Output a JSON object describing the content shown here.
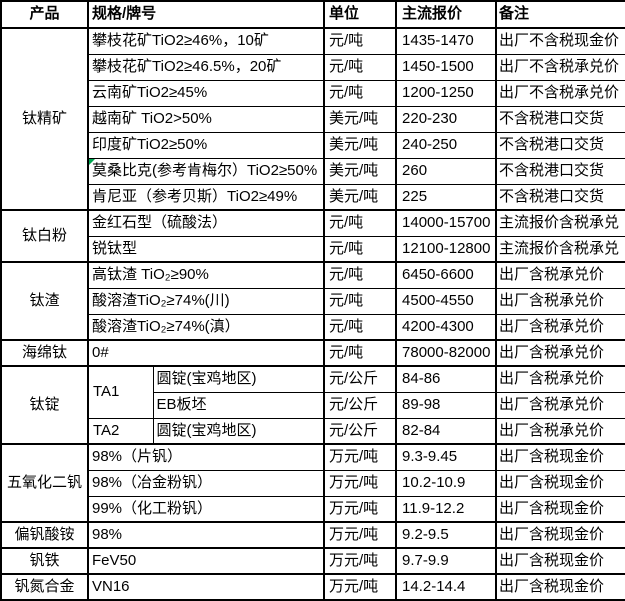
{
  "colors": {
    "grid": "#000000",
    "background": "#ffffff",
    "text": "#000000",
    "flag_green": "#00a650"
  },
  "table": {
    "headers": [
      "产品",
      "规格/牌号",
      "单位",
      "主流报价",
      "备注"
    ],
    "groups": [
      {
        "product": "钛精矿",
        "rows": [
          {
            "spec": "攀枝花矿TiO2≥46%，10矿",
            "unit": "元/吨",
            "price": "1435-1470",
            "note": "出厂不含税现金价"
          },
          {
            "spec": "攀枝花矿TiO2≥46.5%，20矿",
            "unit": "元/吨",
            "price": "1450-1500",
            "note": "出厂不含税承兑价"
          },
          {
            "spec": "云南矿TiO2≥45%",
            "unit": "元/吨",
            "price": "1200-1250",
            "note": "出厂不含税承兑价"
          },
          {
            "spec": "越南矿 TiO2>50%",
            "unit": "美元/吨",
            "price": "220-230",
            "note": "不含税港口交货"
          },
          {
            "spec": "印度矿TiO2≥50%",
            "unit": "美元/吨",
            "price": "240-250",
            "note": "不含税港口交货"
          },
          {
            "spec": "莫桑比克(参考肯梅尔）TiO2≥50%",
            "unit": "美元/吨",
            "price": "260",
            "note": "不含税港口交货",
            "marker": true
          },
          {
            "spec": "肯尼亚（参考贝斯）TiO2≥49%",
            "unit": "美元/吨",
            "price": "225",
            "note": "不含税港口交货"
          }
        ]
      },
      {
        "product": "钛白粉",
        "rows": [
          {
            "spec": "金红石型（硫酸法）",
            "unit": "元/吨",
            "price": "14000-15700",
            "note": "主流报价含税承兑"
          },
          {
            "spec": "锐钛型",
            "unit": "元/吨",
            "price": "12100-12800",
            "note": "主流报价含税承兑"
          }
        ]
      },
      {
        "product": "钛渣",
        "rows": [
          {
            "spec": "高钛渣 TiO₂≥90%",
            "unit": "元/吨",
            "price": "6450-6600",
            "note": "出厂含税承兑价"
          },
          {
            "spec": "酸溶渣TiO₂≥74%(川)",
            "unit": "元/吨",
            "price": "4500-4550",
            "note": "出厂含税承兑价"
          },
          {
            "spec": "酸溶渣TiO₂≥74%(滇）",
            "unit": "元/吨",
            "price": "4200-4300",
            "note": "出厂含税承兑价"
          }
        ]
      },
      {
        "product": "海绵钛",
        "rows": [
          {
            "spec": "0#",
            "unit": "元/吨",
            "price": "78000-82000",
            "note": "出厂含税承兑价"
          }
        ]
      },
      {
        "product": "钛锭",
        "rows": [
          {
            "grade": "TA1",
            "grade_rowspan": 2,
            "spec": "圆锭(宝鸡地区)",
            "spec_span": 1,
            "unit": "元/公斤",
            "price": "84-86",
            "note": "出厂含税承兑价"
          },
          {
            "spec": "EB板坯",
            "spec_span": 1,
            "unit": "元/公斤",
            "price": "89-98",
            "note": "出厂含税承兑价"
          },
          {
            "grade": "TA2",
            "grade_rowspan": 1,
            "spec": "圆锭(宝鸡地区)",
            "spec_span": 1,
            "unit": "元/公斤",
            "price": "82-84",
            "note": "出厂含税承兑价"
          }
        ]
      },
      {
        "product": "五氧化二钒",
        "rows": [
          {
            "spec": "98%（片钒）",
            "unit": "万元/吨",
            "price": "9.3-9.45",
            "note": "出厂含税现金价"
          },
          {
            "spec": "98%（冶金粉钒）",
            "unit": "万元/吨",
            "price": "10.2-10.9",
            "note": "出厂含税现金价"
          },
          {
            "spec": "99%（化工粉钒）",
            "unit": "万元/吨",
            "price": "11.9-12.2",
            "note": "出厂含税现金价"
          }
        ]
      },
      {
        "product": "偏钒酸铵",
        "rows": [
          {
            "spec": "98%",
            "unit": "万元/吨",
            "price": "9.2-9.5",
            "note": "出厂含税现金价"
          }
        ]
      },
      {
        "product": "钒铁",
        "rows": [
          {
            "spec": "FeV50",
            "unit": "万元/吨",
            "price": "9.7-9.9",
            "note": "出厂含税现金价"
          }
        ]
      },
      {
        "product": "钒氮合金",
        "rows": [
          {
            "spec": "VN16",
            "unit": "万元/吨",
            "price": "14.2-14.4",
            "note": "出厂含税现金价"
          }
        ]
      }
    ]
  }
}
